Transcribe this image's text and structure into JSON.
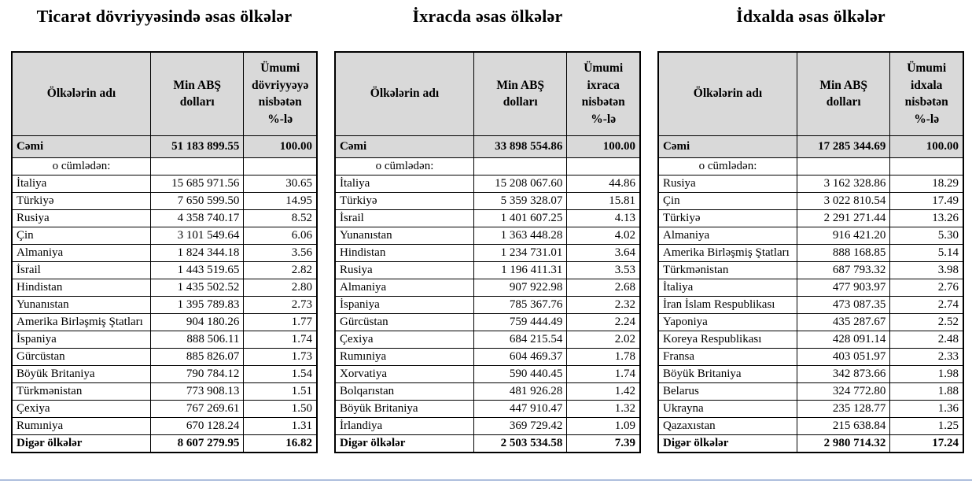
{
  "colors": {
    "header_bg": "#d9d9d9",
    "border": "#000000",
    "bottom_rule": "#aebfdd"
  },
  "tables": [
    {
      "title": "Ticarət dövriyyəsində əsas ölkələr",
      "columns": [
        "Ölkələrin adı",
        "Min ABŞ dolları",
        "Ümumi dövriyyəyə nisbətən %-lə"
      ],
      "rows": [
        {
          "type": "total",
          "name": "Cəmi",
          "value": "51 183 899.55",
          "percent": "100.00"
        },
        {
          "type": "subheader",
          "name": "o cümlədən:",
          "value": "",
          "percent": ""
        },
        {
          "type": "country",
          "name": "İtaliya",
          "value": "15 685 971.56",
          "percent": "30.65"
        },
        {
          "type": "country",
          "name": "Türkiyə",
          "value": "7 650 599.50",
          "percent": "14.95"
        },
        {
          "type": "country",
          "name": "Rusiya",
          "value": "4 358 740.17",
          "percent": "8.52"
        },
        {
          "type": "country",
          "name": "Çin",
          "value": "3 101 549.64",
          "percent": "6.06"
        },
        {
          "type": "country",
          "name": "Almaniya",
          "value": "1 824 344.18",
          "percent": "3.56"
        },
        {
          "type": "country",
          "name": "İsrail",
          "value": "1 443 519.65",
          "percent": "2.82"
        },
        {
          "type": "country",
          "name": "Hindistan",
          "value": "1 435 502.52",
          "percent": "2.80"
        },
        {
          "type": "country",
          "name": "Yunanıstan",
          "value": "1 395 789.83",
          "percent": "2.73"
        },
        {
          "type": "country",
          "name": "Amerika Birləşmiş Ştatları",
          "value": "904 180.26",
          "percent": "1.77"
        },
        {
          "type": "country",
          "name": "İspaniya",
          "value": "888 506.11",
          "percent": "1.74"
        },
        {
          "type": "country",
          "name": "Gürcüstan",
          "value": "885 826.07",
          "percent": "1.73"
        },
        {
          "type": "country",
          "name": "Böyük Britaniya",
          "value": "790 784.12",
          "percent": "1.54"
        },
        {
          "type": "country",
          "name": "Türkmənistan",
          "value": "773 908.13",
          "percent": "1.51"
        },
        {
          "type": "country",
          "name": "Çexiya",
          "value": "767 269.61",
          "percent": "1.50"
        },
        {
          "type": "country",
          "name": "Rumıniya",
          "value": "670 128.24",
          "percent": "1.31"
        },
        {
          "type": "other",
          "name": "Digər ölkələr",
          "value": "8 607 279.95",
          "percent": "16.82"
        }
      ]
    },
    {
      "title": "İxracda əsas ölkələr",
      "columns": [
        "Ölkələrin adı",
        "Min ABŞ dolları",
        "Ümumi ixraca nisbətən %-lə"
      ],
      "rows": [
        {
          "type": "total",
          "name": "Cəmi",
          "value": "33 898 554.86",
          "percent": "100.00"
        },
        {
          "type": "subheader",
          "name": "o cümlədən:",
          "value": "",
          "percent": ""
        },
        {
          "type": "country",
          "name": "İtaliya",
          "value": "15 208 067.60",
          "percent": "44.86"
        },
        {
          "type": "country",
          "name": "Türkiyə",
          "value": "5 359 328.07",
          "percent": "15.81"
        },
        {
          "type": "country",
          "name": "İsrail",
          "value": "1 401 607.25",
          "percent": "4.13"
        },
        {
          "type": "country",
          "name": "Yunanıstan",
          "value": "1 363 448.28",
          "percent": "4.02"
        },
        {
          "type": "country",
          "name": "Hindistan",
          "value": "1 234 731.01",
          "percent": "3.64"
        },
        {
          "type": "country",
          "name": "Rusiya",
          "value": "1 196 411.31",
          "percent": "3.53"
        },
        {
          "type": "country",
          "name": "Almaniya",
          "value": "907 922.98",
          "percent": "2.68"
        },
        {
          "type": "country",
          "name": "İspaniya",
          "value": "785 367.76",
          "percent": "2.32"
        },
        {
          "type": "country",
          "name": "Gürcüstan",
          "value": "759 444.49",
          "percent": "2.24"
        },
        {
          "type": "country",
          "name": "Çexiya",
          "value": "684 215.54",
          "percent": "2.02"
        },
        {
          "type": "country",
          "name": "Rumıniya",
          "value": "604 469.37",
          "percent": "1.78"
        },
        {
          "type": "country",
          "name": "Xorvatiya",
          "value": "590 440.45",
          "percent": "1.74"
        },
        {
          "type": "country",
          "name": "Bolqarıstan",
          "value": "481 926.28",
          "percent": "1.42"
        },
        {
          "type": "country",
          "name": "Böyük Britaniya",
          "value": "447 910.47",
          "percent": "1.32"
        },
        {
          "type": "country",
          "name": "İrlandiya",
          "value": "369 729.42",
          "percent": "1.09"
        },
        {
          "type": "other",
          "name": "Digər ölkələr",
          "value": "2 503 534.58",
          "percent": "7.39"
        }
      ]
    },
    {
      "title": "İdxalda əsas ölkələr",
      "columns": [
        "Ölkələrin adı",
        "Min ABŞ dolları",
        "Ümumi idxala nisbətən %-lə"
      ],
      "rows": [
        {
          "type": "total",
          "name": "Cəmi",
          "value": "17 285 344.69",
          "percent": "100.00"
        },
        {
          "type": "subheader",
          "name": "o cümlədən:",
          "value": "",
          "percent": ""
        },
        {
          "type": "country",
          "name": "Rusiya",
          "value": "3 162 328.86",
          "percent": "18.29"
        },
        {
          "type": "country",
          "name": "Çin",
          "value": "3 022 810.54",
          "percent": "17.49"
        },
        {
          "type": "country",
          "name": "Türkiyə",
          "value": "2 291 271.44",
          "percent": "13.26"
        },
        {
          "type": "country",
          "name": "Almaniya",
          "value": "916 421.20",
          "percent": "5.30"
        },
        {
          "type": "country",
          "name": "Amerika Birləşmiş Ştatları",
          "value": "888 168.85",
          "percent": "5.14"
        },
        {
          "type": "country",
          "name": "Türkmənistan",
          "value": "687 793.32",
          "percent": "3.98"
        },
        {
          "type": "country",
          "name": "İtaliya",
          "value": "477 903.97",
          "percent": "2.76"
        },
        {
          "type": "country",
          "name": "İran İslam Respublikası",
          "value": "473 087.35",
          "percent": "2.74"
        },
        {
          "type": "country",
          "name": "Yaponiya",
          "value": "435 287.67",
          "percent": "2.52"
        },
        {
          "type": "country",
          "name": "Koreya Respublikası",
          "value": "428 091.14",
          "percent": "2.48"
        },
        {
          "type": "country",
          "name": "Fransa",
          "value": "403 051.97",
          "percent": "2.33"
        },
        {
          "type": "country",
          "name": "Böyük Britaniya",
          "value": "342 873.66",
          "percent": "1.98"
        },
        {
          "type": "country",
          "name": "Belarus",
          "value": "324 772.80",
          "percent": "1.88"
        },
        {
          "type": "country",
          "name": "Ukrayna",
          "value": "235 128.77",
          "percent": "1.36"
        },
        {
          "type": "country",
          "name": "Qazaxıstan",
          "value": "215 638.84",
          "percent": "1.25"
        },
        {
          "type": "other",
          "name": "Digər ölkələr",
          "value": "2 980 714.32",
          "percent": "17.24"
        }
      ]
    }
  ]
}
